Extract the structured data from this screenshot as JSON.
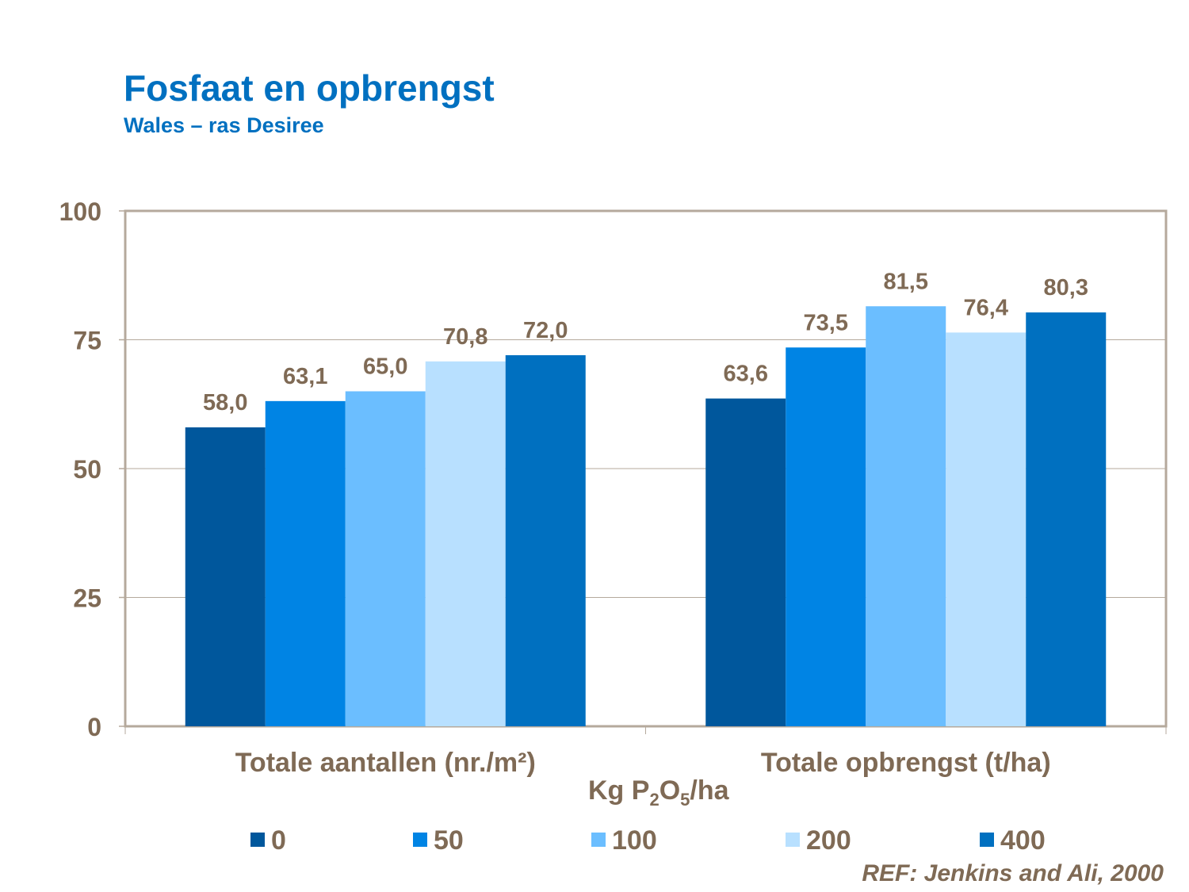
{
  "title": "Fosfaat en opbrengst",
  "subtitle": "Wales – ras Desiree",
  "reference": "REF: Jenkins and Ali, 2000",
  "chart_data": {
    "type": "bar",
    "title": "Fosfaat en opbrengst",
    "subtitle": "Wales – ras Desiree",
    "categories": [
      "Totale aantallen (nr./m²)",
      "Totale opbrengst (t/ha)"
    ],
    "xlabel": {
      "pre": "Kg P",
      "sub1": "2",
      "mid": "O",
      "sub2": "5",
      "post": "/ha"
    },
    "ylabel": "",
    "ylim": [
      0,
      100
    ],
    "yticks": [
      "0",
      "25",
      "50",
      "75",
      "100"
    ],
    "grid": true,
    "legend_position": "bottom",
    "series": [
      {
        "name": "0",
        "color": "#00579C",
        "values": [
          58.0,
          63.6
        ],
        "labels": [
          "58,0",
          "63,6"
        ]
      },
      {
        "name": "50",
        "color": "#0084E4",
        "values": [
          63.1,
          73.5
        ],
        "labels": [
          "63,1",
          "73,5"
        ]
      },
      {
        "name": "100",
        "color": "#6BBEFF",
        "values": [
          65.0,
          81.5
        ],
        "labels": [
          "65,0",
          "81,5"
        ]
      },
      {
        "name": "200",
        "color": "#B8E0FF",
        "values": [
          70.8,
          76.4
        ],
        "labels": [
          "70,8",
          "76,4"
        ]
      },
      {
        "name": "400",
        "color": "#0070C0",
        "values": [
          72.0,
          80.3
        ],
        "labels": [
          "72,0",
          "80,3"
        ]
      }
    ]
  }
}
